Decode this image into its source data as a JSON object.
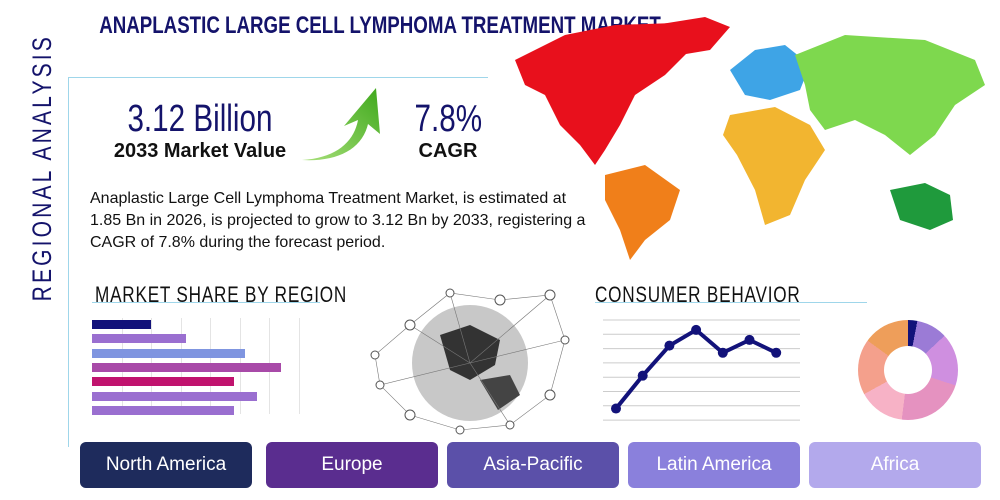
{
  "title": "ANAPLASTIC LARGE CELL LYMPHOMA TREATMENT MARKET",
  "side_label": "REGIONAL ANALYSIS",
  "market_value": {
    "value": "3.12 Billion",
    "label": "2033 Market Value"
  },
  "cagr": {
    "value": "7.8%",
    "label": "CAGR"
  },
  "description": "Anaplastic Large Cell Lymphoma Treatment Market, is estimated at 1.85 Bn in 2026, is projected to grow to 3.12 Bn by 2033, registering a CAGR of 7.8% during the forecast period.",
  "market_share": {
    "title": "MARKET SHARE BY REGION",
    "bars": [
      {
        "level": 2.0,
        "color": "#12127a"
      },
      {
        "level": 3.2,
        "color": "#9a6fd0"
      },
      {
        "level": 5.2,
        "color": "#7f95e0"
      },
      {
        "level": 6.4,
        "color": "#a84aa8"
      },
      {
        "level": 4.8,
        "color": "#c0136e"
      },
      {
        "level": 5.6,
        "color": "#9a6fd0"
      },
      {
        "level": 4.8,
        "color": "#9a6fd0"
      }
    ]
  },
  "consumer_behavior": {
    "title": "CONSUMER BEHAVIOR",
    "line_points": [
      0.8,
      3.1,
      5.2,
      6.3,
      4.7,
      5.6,
      4.7
    ],
    "line_color": "#12127a",
    "donut": [
      {
        "share": 3,
        "color": "#12127a"
      },
      {
        "share": 10,
        "color": "#9b7bd6"
      },
      {
        "share": 17,
        "color": "#cf8fe0"
      },
      {
        "share": 22,
        "color": "#e592c0"
      },
      {
        "share": 15,
        "color": "#f7b2c6"
      },
      {
        "share": 18,
        "color": "#f4a08c"
      },
      {
        "share": 15,
        "color": "#ee9e5a"
      }
    ]
  },
  "regions": [
    {
      "label": "North America",
      "color": "#1e2b5c"
    },
    {
      "label": "Europe",
      "color": "#5a2d8f"
    },
    {
      "label": "Asia-Pacific",
      "color": "#5b50a9"
    },
    {
      "label": "Latin America",
      "color": "#8a80dc"
    },
    {
      "label": "Africa",
      "color": "#b3a9ec"
    }
  ],
  "arrow_color": "#5fc02e"
}
